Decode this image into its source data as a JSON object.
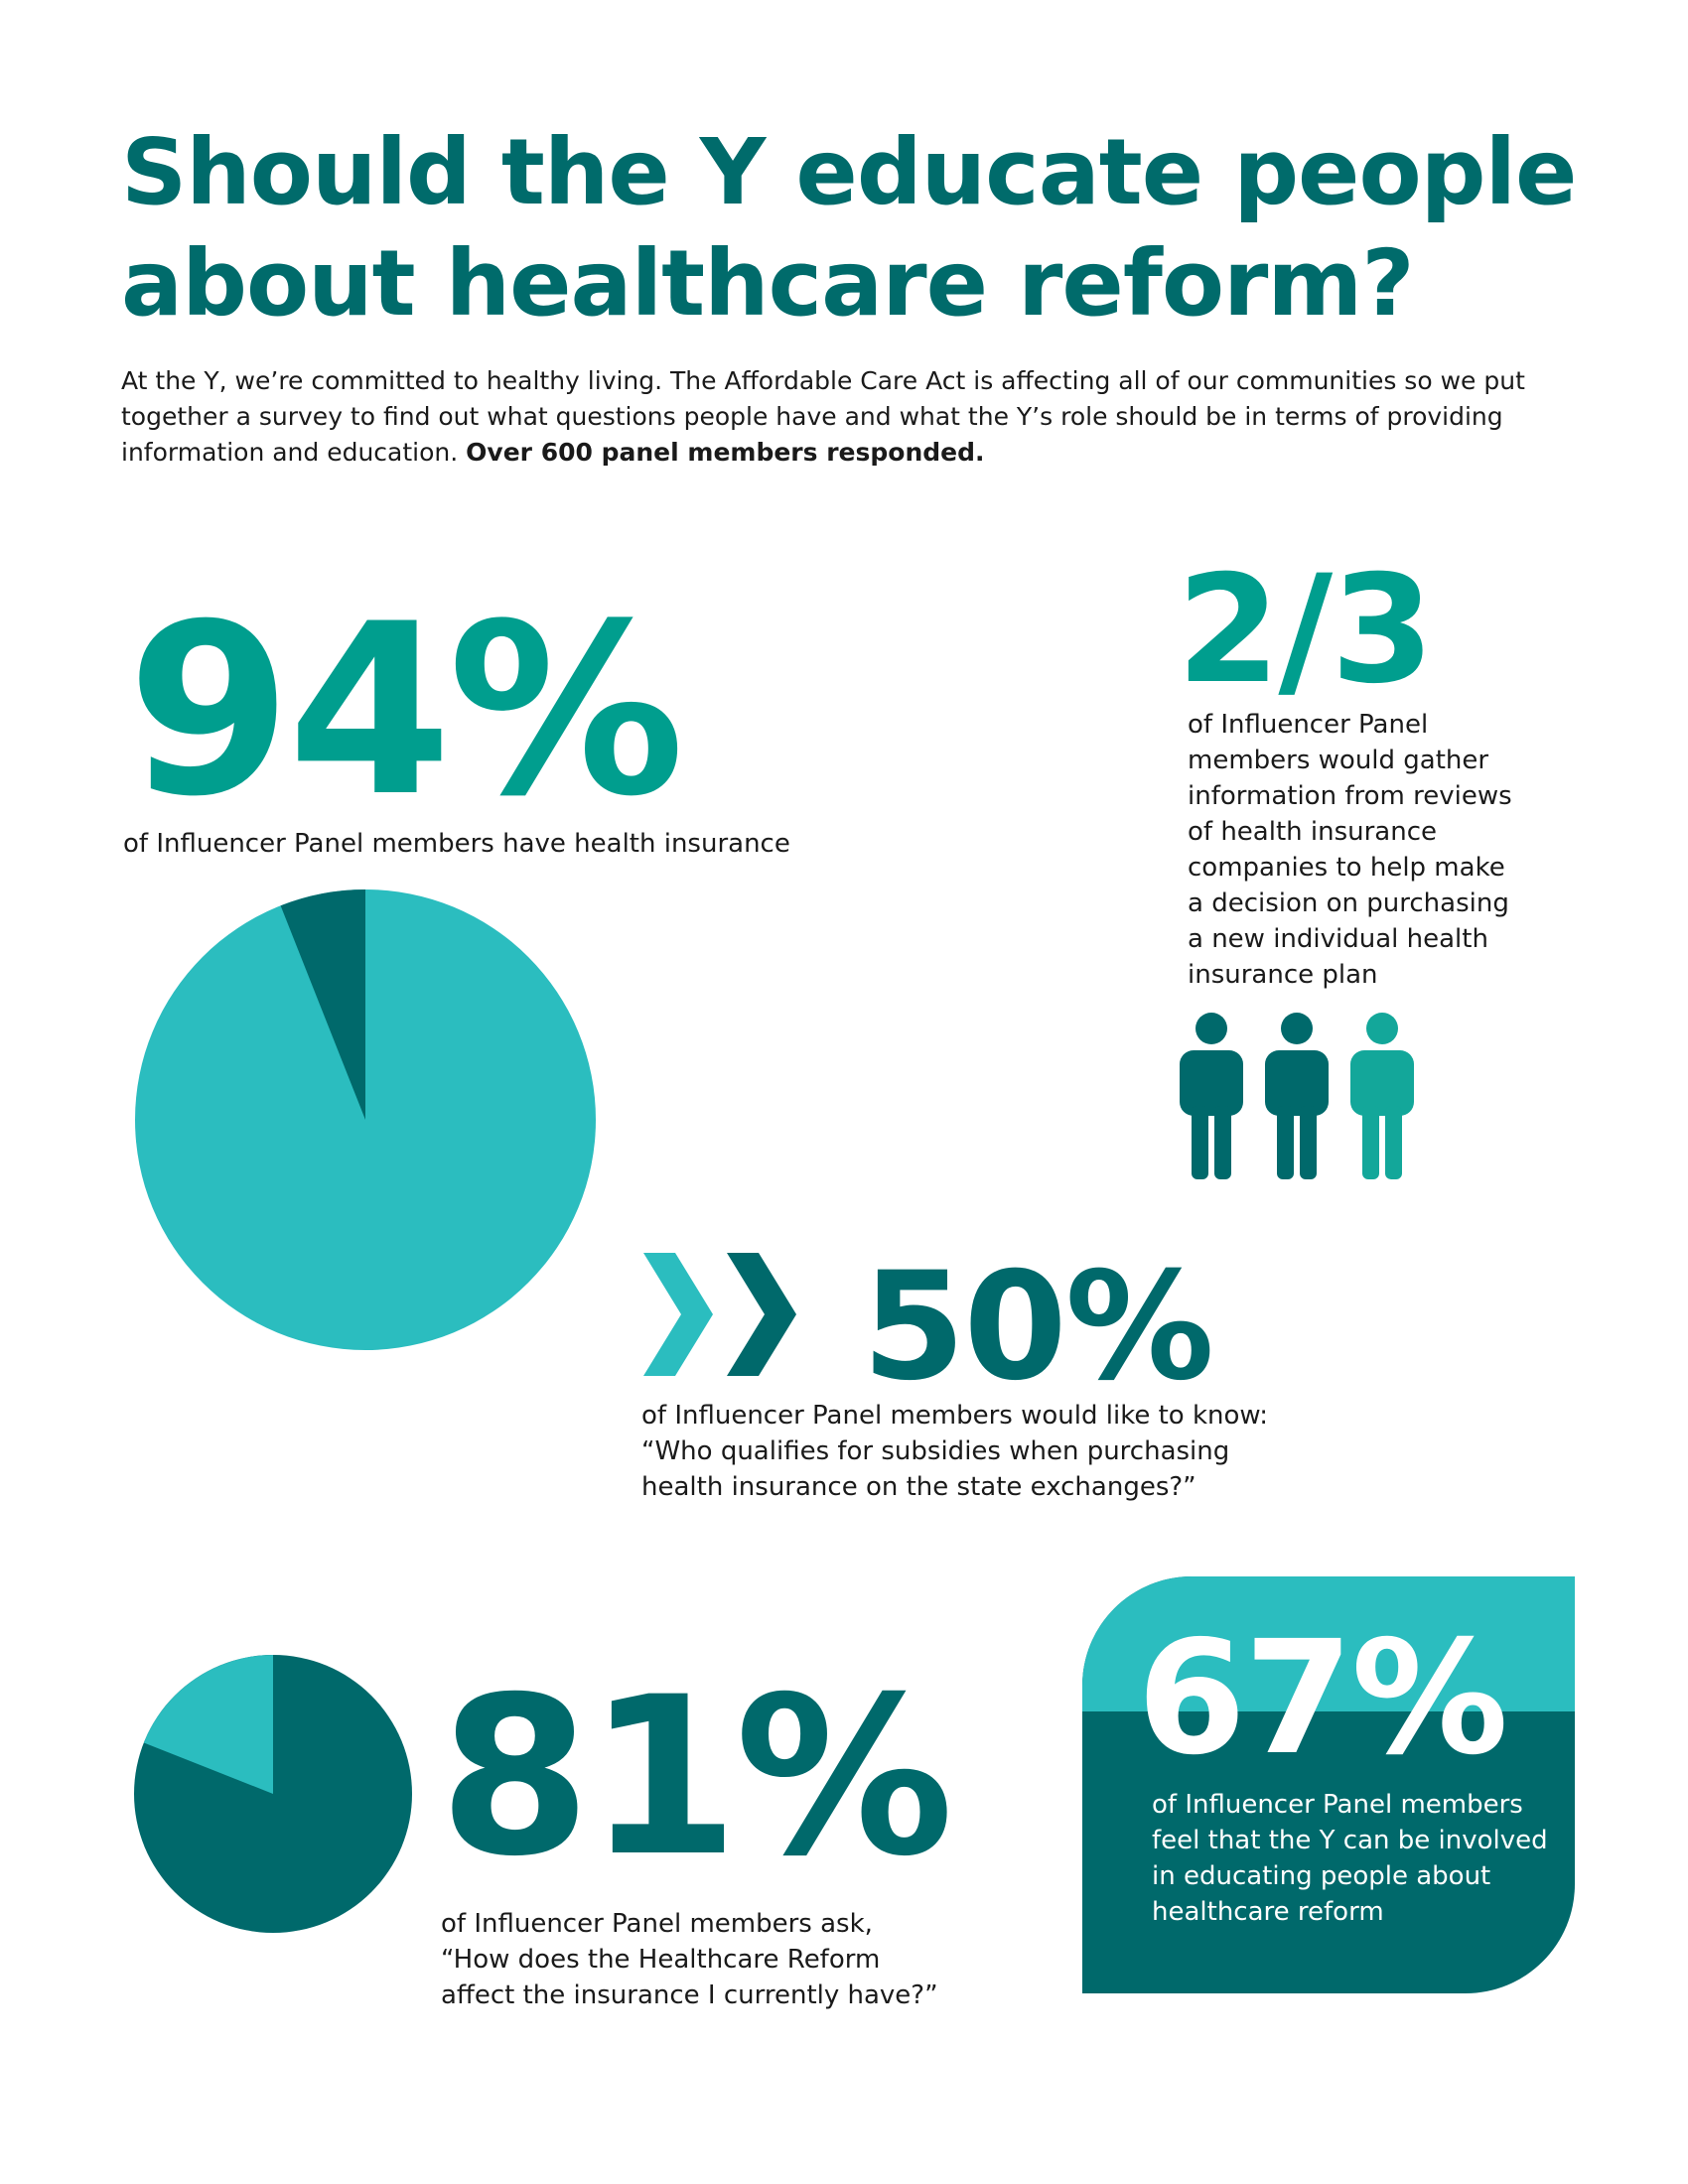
{
  "header": {
    "title": "Should the Y educate people about healthcare reform?",
    "intro": "At the Y, we’re committed to healthy living. The Affordable Care Act is affecting all of our communities so we put together a survey to find out what questions people have and what the Y’s role should be in terms of providing information and education.",
    "intro_bold": "Over 600 panel members responded."
  },
  "stat_94": {
    "value": "94%",
    "caption": "of Influencer Panel members have health insurance",
    "pie": {
      "percent": 94,
      "colors": {
        "main": "#2bbdbf",
        "slice": "#00696b"
      }
    }
  },
  "stat_2_3": {
    "value": "2/3",
    "caption_lines": [
      "of Influencer Panel",
      "members would gather",
      "information from reviews",
      "of health insurance",
      "companies to help make",
      "a decision on purchasing",
      "a new individual health",
      "insurance plan"
    ],
    "people_icons": [
      {
        "icon": "person-icon",
        "color": "#00696b"
      },
      {
        "icon": "person-icon",
        "color": "#00696b"
      },
      {
        "icon": "person-icon",
        "color": "#13a79a"
      }
    ]
  },
  "stat_50": {
    "value": "50%",
    "caption_lines": [
      "of Influencer Panel members would like to know:",
      "“Who qualifies for subsidies when purchasing",
      "health insurance on the state exchanges?”"
    ],
    "chevrons": [
      {
        "icon": "chevron-right-icon",
        "color": "#2bbdbf"
      },
      {
        "icon": "chevron-right-icon",
        "color": "#00696b"
      }
    ]
  },
  "stat_81": {
    "value": "81%",
    "caption_lines": [
      "of Influencer Panel members ask,",
      "“How does the Healthcare Reform",
      "affect the insurance I currently have?”"
    ],
    "pie": {
      "percent": 81,
      "colors": {
        "main": "#00696b",
        "slice": "#2bbdbf"
      }
    }
  },
  "stat_67": {
    "value": "67%",
    "caption_lines": [
      "of Influencer Panel members",
      "feel that the Y can be involved",
      "in educating people about",
      "healthcare reform"
    ],
    "colors": {
      "top": "#2bbdbf",
      "bottom": "#00696b"
    }
  }
}
